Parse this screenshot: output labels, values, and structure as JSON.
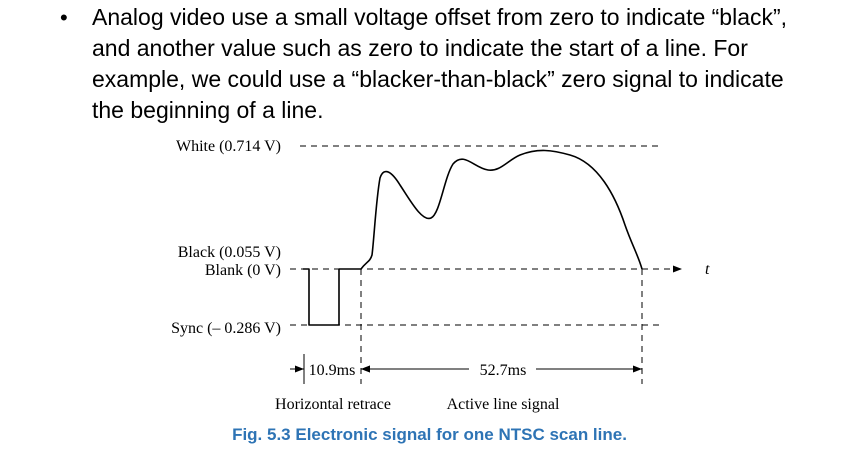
{
  "bullet": {
    "symbol": "•",
    "text": "Analog video use a small voltage offset from zero to indicate “black”, and another value such as zero to indicate the start of a line. For example, we could use a “blacker-than-black” zero signal to indicate the beginning of a line."
  },
  "figure": {
    "levels": {
      "white": "White (0.714 V)",
      "black": "Black (0.055 V)",
      "blank": "Blank (0 V)",
      "sync": "Sync (– 0.286 V)"
    },
    "time_axis_label": "t",
    "durations": {
      "retrace": "10.9ms",
      "active": "52.7ms"
    },
    "segments": {
      "retrace": "Horizontal retrace",
      "active": "Active line signal"
    },
    "caption": "Fig. 5.3 Electronic signal for one NTSC scan line.",
    "caption_color": "#2E74B5"
  }
}
